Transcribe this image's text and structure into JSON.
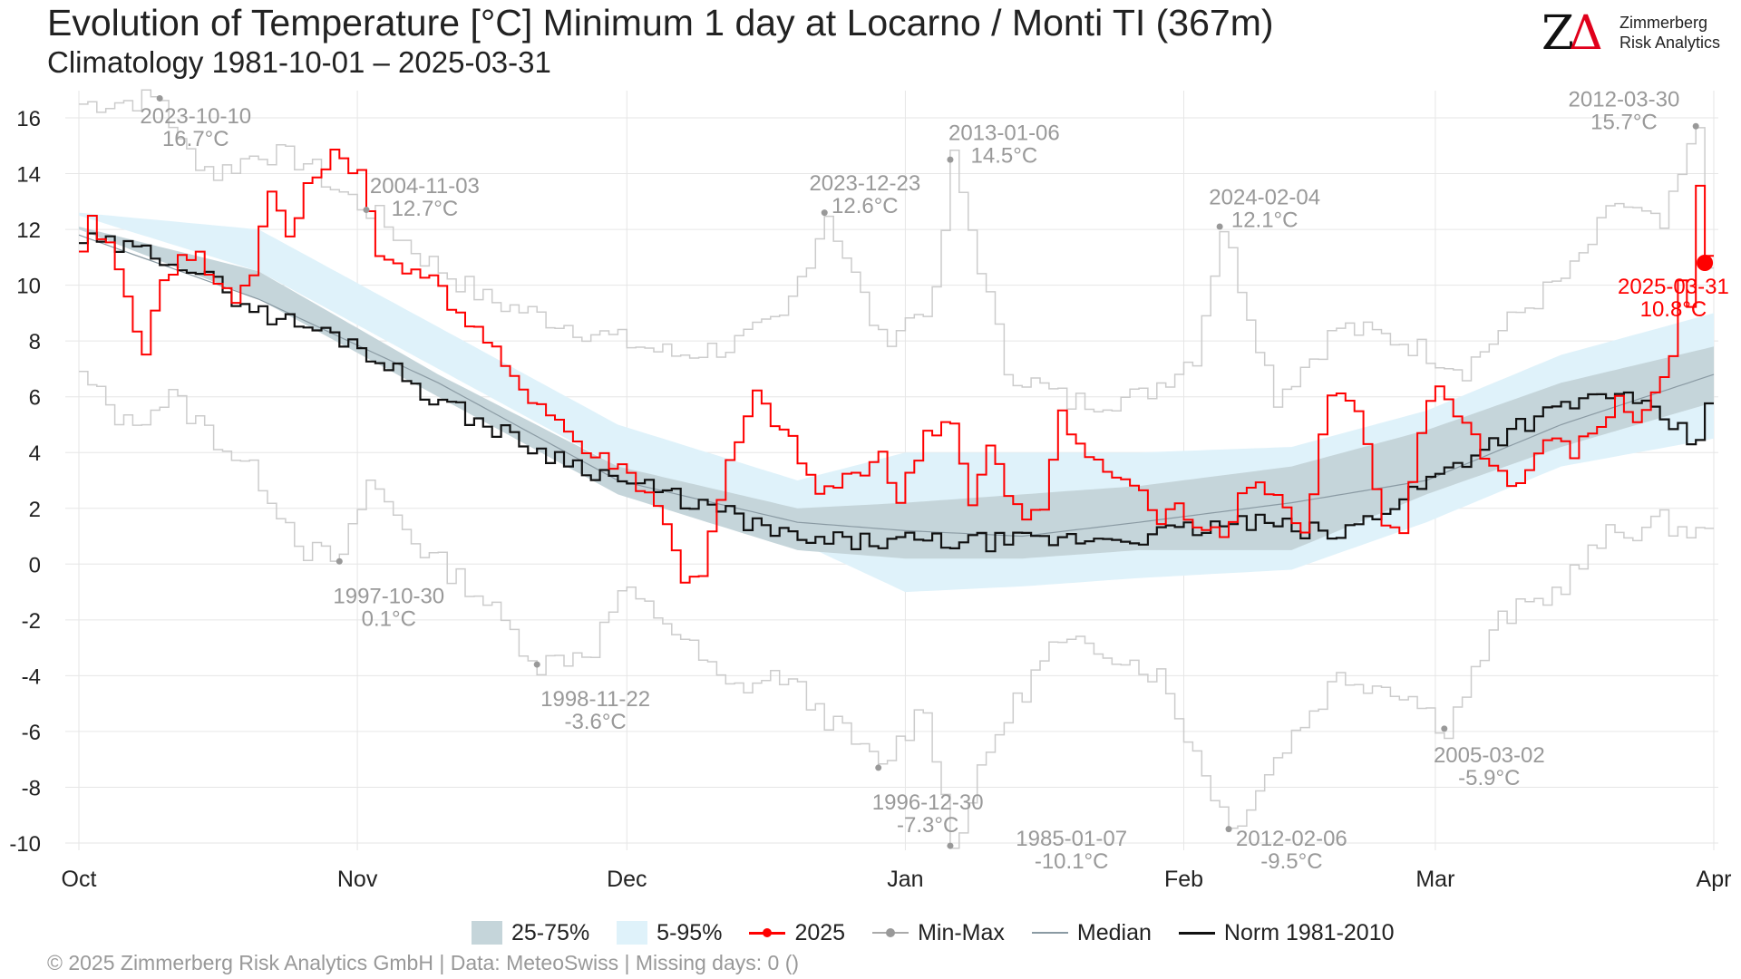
{
  "header": {
    "title": "Evolution of Temperature [°C] Minimum 1 day at Locarno / Monti  TI (367m)",
    "subtitle": "Climatology 1981-10-01 – 2025-03-31"
  },
  "logo": {
    "mark": "ZΔ",
    "line1": "Zimmerberg",
    "line2": "Risk Analytics"
  },
  "legend": {
    "band_25_75": "25-75%",
    "band_5_95": "5-95%",
    "current": "2025",
    "minmax": "Min-Max",
    "median": "Median",
    "norm": "Norm 1981-2010"
  },
  "footer": {
    "text": "©  2025 Zimmerberg Risk Analytics GmbH | Data: MeteoSwiss | Missing days: 0 ()"
  },
  "colors": {
    "current": "#ff0000",
    "band_25_75": "#c5d5da",
    "band_5_95": "#dff2fa",
    "median": "#8a9aa3",
    "norm": "#111111",
    "minmax": "#cccccc",
    "annotation": "#999999"
  },
  "chart_data": {
    "type": "line",
    "xlabel": "",
    "ylabel": "",
    "ylim": [
      -10,
      16
    ],
    "yticks": [
      -10,
      -8,
      -6,
      -4,
      -2,
      0,
      2,
      4,
      6,
      8,
      10,
      12,
      14,
      16
    ],
    "xticks": [
      {
        "day": 0,
        "label": "Oct"
      },
      {
        "day": 31,
        "label": "Nov"
      },
      {
        "day": 61,
        "label": "Dec"
      },
      {
        "day": 92,
        "label": "Jan"
      },
      {
        "day": 123,
        "label": "Feb"
      },
      {
        "day": 151,
        "label": "Mar"
      },
      {
        "day": 182,
        "label": "Apr"
      }
    ],
    "grid": true,
    "legend_position": "bottom",
    "max_anchors": [
      [
        0,
        16.5
      ],
      [
        9,
        16.7
      ],
      [
        11,
        15
      ],
      [
        15,
        14
      ],
      [
        20,
        14.8
      ],
      [
        25,
        14.4
      ],
      [
        28,
        13.5
      ],
      [
        32,
        12.7
      ],
      [
        38,
        11
      ],
      [
        45,
        9.5
      ],
      [
        50,
        9
      ],
      [
        60,
        8
      ],
      [
        66,
        7.5
      ],
      [
        72,
        7.8
      ],
      [
        78,
        8.7
      ],
      [
        83,
        12.6
      ],
      [
        89,
        8
      ],
      [
        95,
        9.5
      ],
      [
        97,
        14.5
      ],
      [
        103,
        7
      ],
      [
        110,
        5.8
      ],
      [
        118,
        6
      ],
      [
        124,
        7.5
      ],
      [
        127,
        12.1
      ],
      [
        133,
        6
      ],
      [
        140,
        8.5
      ],
      [
        147,
        8
      ],
      [
        154,
        7
      ],
      [
        160,
        9
      ],
      [
        166,
        10.5
      ],
      [
        171,
        13
      ],
      [
        176,
        12
      ],
      [
        180,
        15.7
      ],
      [
        181,
        11
      ]
    ],
    "min_anchors": [
      [
        0,
        6.7
      ],
      [
        5,
        5
      ],
      [
        10,
        6
      ],
      [
        15,
        4.5
      ],
      [
        20,
        3
      ],
      [
        25,
        0.5
      ],
      [
        29,
        0.1
      ],
      [
        32,
        3
      ],
      [
        38,
        0.5
      ],
      [
        44,
        -1
      ],
      [
        51,
        -3.6
      ],
      [
        57,
        -3
      ],
      [
        60,
        -1
      ],
      [
        65,
        -2
      ],
      [
        72,
        -4.5
      ],
      [
        78,
        -4
      ],
      [
        89,
        -7.3
      ],
      [
        94,
        -5
      ],
      [
        97,
        -10.1
      ],
      [
        102,
        -6
      ],
      [
        108,
        -3
      ],
      [
        114,
        -3
      ],
      [
        120,
        -4
      ],
      [
        128,
        -9.5
      ],
      [
        134,
        -6.5
      ],
      [
        140,
        -4
      ],
      [
        147,
        -4.5
      ],
      [
        152,
        -5.9
      ],
      [
        158,
        -2
      ],
      [
        164,
        -1
      ],
      [
        170,
        1
      ],
      [
        176,
        1.5
      ],
      [
        181,
        1
      ]
    ],
    "p05": [
      [
        0,
        12.5
      ],
      [
        20,
        10.5
      ],
      [
        40,
        7
      ],
      [
        60,
        3.5
      ],
      [
        80,
        0.8
      ],
      [
        92,
        -1
      ],
      [
        105,
        -0.8
      ],
      [
        118,
        -0.5
      ],
      [
        135,
        -0.2
      ],
      [
        150,
        1.5
      ],
      [
        165,
        3.5
      ],
      [
        182,
        4.5
      ]
    ],
    "p25": [
      [
        0,
        12
      ],
      [
        20,
        9.5
      ],
      [
        40,
        6
      ],
      [
        60,
        2.5
      ],
      [
        80,
        0.5
      ],
      [
        92,
        0.2
      ],
      [
        105,
        0.2
      ],
      [
        118,
        0.5
      ],
      [
        135,
        0.5
      ],
      [
        150,
        2.5
      ],
      [
        165,
        4.2
      ],
      [
        182,
        5.8
      ]
    ],
    "p75": [
      [
        0,
        12.1
      ],
      [
        20,
        10.5
      ],
      [
        40,
        6.8
      ],
      [
        60,
        3.5
      ],
      [
        80,
        2
      ],
      [
        92,
        2.2
      ],
      [
        105,
        2.5
      ],
      [
        118,
        2.8
      ],
      [
        135,
        3.5
      ],
      [
        150,
        4.8
      ],
      [
        165,
        6.5
      ],
      [
        182,
        7.8
      ]
    ],
    "p95": [
      [
        0,
        12.6
      ],
      [
        20,
        12
      ],
      [
        40,
        8.5
      ],
      [
        60,
        5
      ],
      [
        80,
        3
      ],
      [
        92,
        4
      ],
      [
        105,
        4
      ],
      [
        118,
        4
      ],
      [
        135,
        4.2
      ],
      [
        150,
        5.5
      ],
      [
        165,
        7.5
      ],
      [
        182,
        9
      ]
    ],
    "median": [
      [
        0,
        11.8
      ],
      [
        20,
        9.5
      ],
      [
        40,
        6.5
      ],
      [
        60,
        3
      ],
      [
        80,
        1.5
      ],
      [
        92,
        1.2
      ],
      [
        105,
        1
      ],
      [
        118,
        1.5
      ],
      [
        135,
        2.2
      ],
      [
        150,
        3
      ],
      [
        165,
        5
      ],
      [
        182,
        6.8
      ]
    ],
    "norm": [
      [
        0,
        11.6
      ],
      [
        10,
        11
      ],
      [
        20,
        9
      ],
      [
        30,
        8
      ],
      [
        40,
        5.8
      ],
      [
        50,
        4.2
      ],
      [
        60,
        3
      ],
      [
        70,
        2
      ],
      [
        80,
        0.8
      ],
      [
        92,
        0.8
      ],
      [
        105,
        0.8
      ],
      [
        118,
        1
      ],
      [
        130,
        1.5
      ],
      [
        140,
        1
      ],
      [
        150,
        3
      ],
      [
        160,
        5
      ],
      [
        170,
        6.2
      ],
      [
        177,
        5
      ],
      [
        180,
        4.2
      ],
      [
        181,
        5.8
      ]
    ],
    "current_anchors": [
      [
        0,
        11
      ],
      [
        1,
        12.2
      ],
      [
        3,
        11.5
      ],
      [
        5,
        9.5
      ],
      [
        7,
        7.7
      ],
      [
        9,
        10
      ],
      [
        11,
        11.2
      ],
      [
        13,
        11
      ],
      [
        15,
        10
      ],
      [
        17,
        9.5
      ],
      [
        19,
        10.5
      ],
      [
        21,
        13.5
      ],
      [
        23,
        11.5
      ],
      [
        25,
        13.5
      ],
      [
        28,
        14.8
      ],
      [
        31,
        14
      ],
      [
        33,
        11
      ],
      [
        38,
        10.5
      ],
      [
        42,
        9
      ],
      [
        45,
        8
      ],
      [
        48,
        6.5
      ],
      [
        52,
        5.5
      ],
      [
        56,
        4
      ],
      [
        60,
        3.5
      ],
      [
        64,
        2.2
      ],
      [
        67,
        -0.5
      ],
      [
        69,
        -0.3
      ],
      [
        72,
        3.5
      ],
      [
        75,
        6
      ],
      [
        79,
        4.3
      ],
      [
        82,
        2.5
      ],
      [
        86,
        3.2
      ],
      [
        89,
        4
      ],
      [
        91,
        2.2
      ],
      [
        94,
        4.7
      ],
      [
        97,
        5.2
      ],
      [
        99,
        2
      ],
      [
        101,
        4.2
      ],
      [
        103,
        2.5
      ],
      [
        105,
        1.5
      ],
      [
        107,
        2
      ],
      [
        109,
        5.6
      ],
      [
        111,
        4.3
      ],
      [
        113,
        3.5
      ],
      [
        116,
        3
      ],
      [
        118,
        2.5
      ],
      [
        120,
        1.5
      ],
      [
        122,
        2
      ],
      [
        124,
        1.5
      ],
      [
        127,
        1.2
      ],
      [
        130,
        3
      ],
      [
        133,
        2.5
      ],
      [
        136,
        1
      ],
      [
        139,
        6.2
      ],
      [
        142,
        5.5
      ],
      [
        145,
        1.2
      ],
      [
        147,
        0.9
      ],
      [
        149,
        4.8
      ],
      [
        151,
        6.4
      ],
      [
        154,
        5
      ],
      [
        157,
        3.5
      ],
      [
        160,
        2.8
      ],
      [
        163,
        4.5
      ],
      [
        166,
        4
      ],
      [
        169,
        5
      ],
      [
        171,
        5.8
      ],
      [
        173,
        5.2
      ],
      [
        175,
        6
      ],
      [
        177,
        7.5
      ],
      [
        178,
        10
      ],
      [
        179,
        9.5
      ],
      [
        180,
        13.6
      ],
      [
        181,
        10.8
      ]
    ],
    "current_last": {
      "day": 181,
      "value": 10.8
    },
    "annotations": [
      {
        "label": "2023-10-10",
        "value": "16.7°C",
        "day": 9,
        "y": 16.7,
        "text_day": 13,
        "text_y": 15.8,
        "color": "#999999"
      },
      {
        "label": "2004-11-03",
        "value": "12.7°C",
        "day": 32,
        "y": 12.7,
        "text_day": 38.5,
        "text_y": 13.3,
        "color": "#999999"
      },
      {
        "label": "2023-12-23",
        "value": "12.6°C",
        "day": 83,
        "y": 12.6,
        "text_day": 87.5,
        "text_y": 13.4,
        "color": "#999999"
      },
      {
        "label": "2013-01-06",
        "value": "14.5°C",
        "day": 97,
        "y": 14.5,
        "text_day": 103,
        "text_y": 15.2,
        "color": "#999999"
      },
      {
        "label": "2024-02-04",
        "value": "12.1°C",
        "day": 127,
        "y": 12.1,
        "text_day": 132,
        "text_y": 12.9,
        "color": "#999999"
      },
      {
        "label": "2012-03-30",
        "value": "15.7°C",
        "day": 180,
        "y": 15.7,
        "text_day": 172,
        "text_y": 16.4,
        "color": "#999999"
      },
      {
        "label": "1997-10-30",
        "value": "0.1°C",
        "day": 29,
        "y": 0.1,
        "text_day": 34.5,
        "text_y": -1.4,
        "color": "#999999"
      },
      {
        "label": "1998-11-22",
        "value": "-3.6°C",
        "day": 51,
        "y": -3.6,
        "text_day": 57.5,
        "text_y": -5.1,
        "color": "#999999"
      },
      {
        "label": "1996-12-30",
        "value": "-7.3°C",
        "day": 89,
        "y": -7.3,
        "text_day": 94.5,
        "text_y": -8.8,
        "color": "#999999"
      },
      {
        "label": "1985-01-07",
        "value": "-10.1°C",
        "day": 97,
        "y": -10.1,
        "text_day": 110.5,
        "text_y": -10.1,
        "color": "#999999"
      },
      {
        "label": "2012-02-06",
        "value": "-9.5°C",
        "day": 128,
        "y": -9.5,
        "text_day": 135,
        "text_y": -10.1,
        "color": "#999999"
      },
      {
        "label": "2005-03-02",
        "value": "-5.9°C",
        "day": 152,
        "y": -5.9,
        "text_day": 157,
        "text_y": -7.1,
        "color": "#999999"
      },
      {
        "label": "2025-03-31",
        "value": "10.8°C",
        "day": 181,
        "y": 10.8,
        "text_day": 177.5,
        "text_y": 9.7,
        "color": "#ff0000"
      }
    ]
  }
}
